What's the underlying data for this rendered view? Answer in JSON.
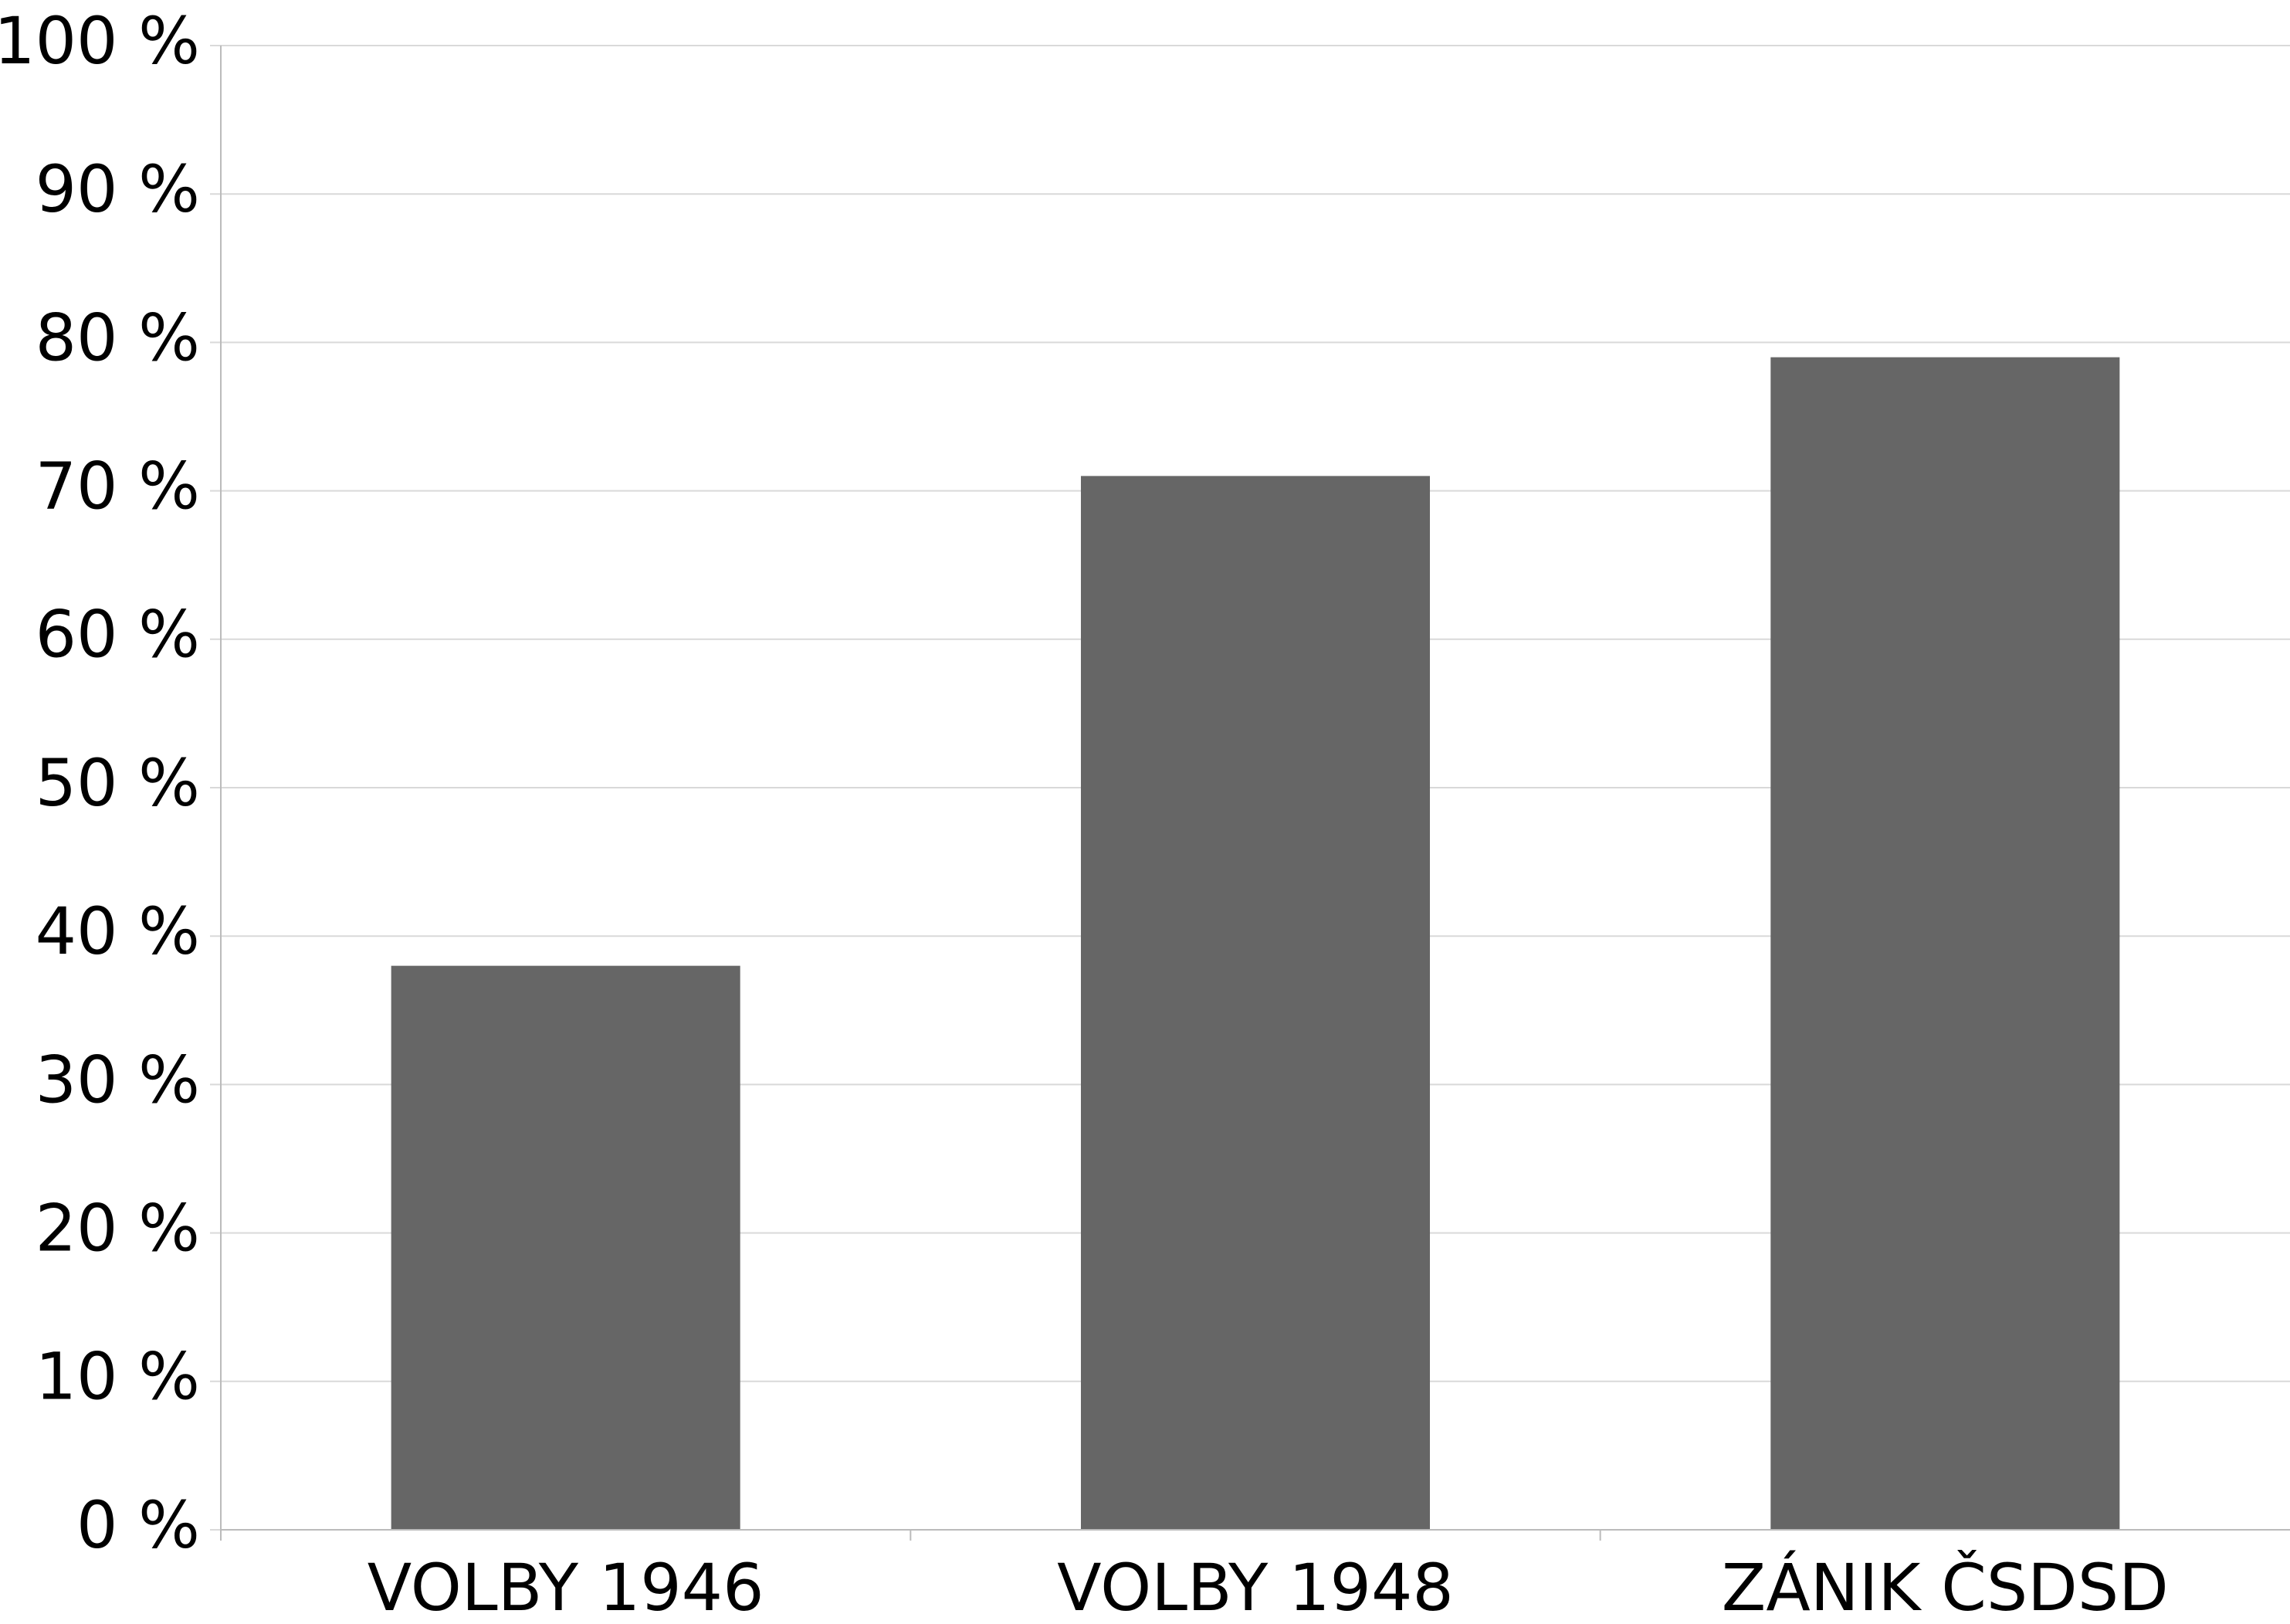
{
  "chart_data": {
    "type": "bar",
    "categories": [
      "VOLBY 1946",
      "VOLBY 1948",
      "ZÁNIK ČSDSD"
    ],
    "values": [
      38,
      71,
      79
    ],
    "color": "#666666",
    "ylim": [
      0,
      100
    ],
    "yticks": [
      {
        "value": 0,
        "label": "0 %"
      },
      {
        "value": 10,
        "label": "10 %"
      },
      {
        "value": 20,
        "label": "20 %"
      },
      {
        "value": 30,
        "label": "30 %"
      },
      {
        "value": 40,
        "label": "40 %"
      },
      {
        "value": 50,
        "label": "50 %"
      },
      {
        "value": 60,
        "label": "60 %"
      },
      {
        "value": 70,
        "label": "70 %"
      },
      {
        "value": 80,
        "label": "80 %"
      },
      {
        "value": 90,
        "label": "90 %"
      },
      {
        "value": 100,
        "label": "100 %"
      }
    ],
    "grid": true
  }
}
